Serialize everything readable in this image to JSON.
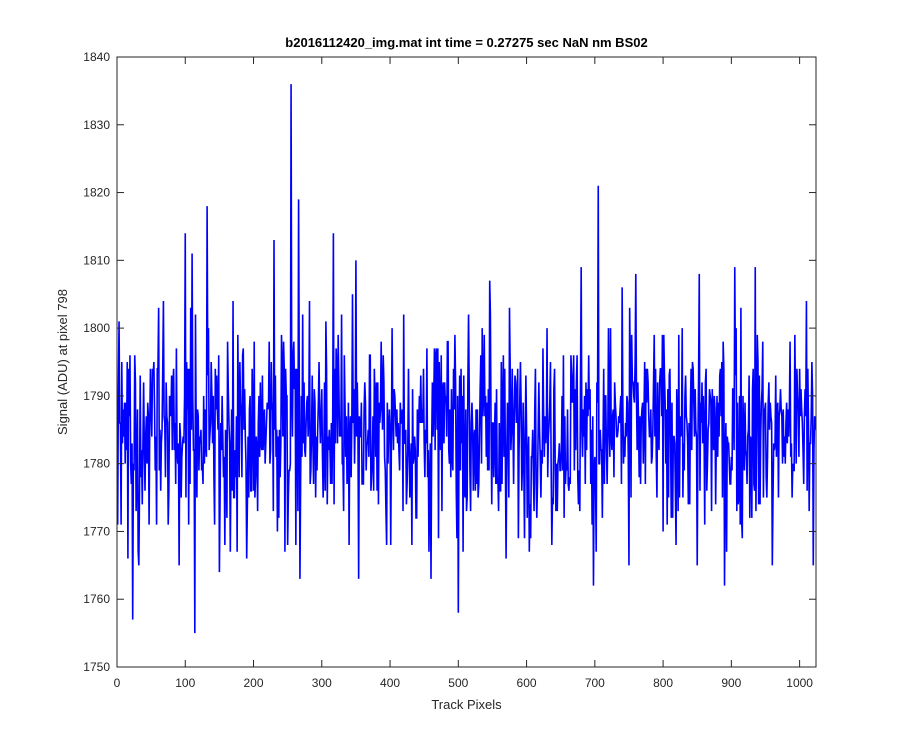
{
  "chart_data": {
    "type": "line",
    "title": "b2016112420_img.mat int time = 0.27275 sec  NaN nm BS02",
    "xlabel": "Track Pixels",
    "ylabel": "Signal (ADU) at pixel 798",
    "xlim": [
      0,
      1024
    ],
    "ylim": [
      1750,
      1840
    ],
    "xticks": [
      0,
      100,
      200,
      300,
      400,
      500,
      600,
      700,
      800,
      900,
      1000
    ],
    "yticks": [
      1750,
      1760,
      1770,
      1780,
      1790,
      1800,
      1810,
      1820,
      1830,
      1840
    ],
    "grid": false,
    "box": true,
    "series": [
      {
        "color": "#0000ff",
        "peaks": [
          {
            "x": 1,
            "y": 1771
          },
          {
            "x": 3,
            "y": 1801
          },
          {
            "x": 16,
            "y": 1766
          },
          {
            "x": 23,
            "y": 1757
          },
          {
            "x": 32,
            "y": 1765
          },
          {
            "x": 68,
            "y": 1804
          },
          {
            "x": 91,
            "y": 1765
          },
          {
            "x": 100,
            "y": 1814
          },
          {
            "x": 110,
            "y": 1811
          },
          {
            "x": 114,
            "y": 1755
          },
          {
            "x": 132,
            "y": 1818
          },
          {
            "x": 150,
            "y": 1764
          },
          {
            "x": 170,
            "y": 1804
          },
          {
            "x": 190,
            "y": 1766
          },
          {
            "x": 230,
            "y": 1813
          },
          {
            "x": 250,
            "y": 1768
          },
          {
            "x": 255,
            "y": 1836
          },
          {
            "x": 262,
            "y": 1768
          },
          {
            "x": 266,
            "y": 1819
          },
          {
            "x": 268,
            "y": 1763
          },
          {
            "x": 282,
            "y": 1804
          },
          {
            "x": 317,
            "y": 1814
          },
          {
            "x": 340,
            "y": 1768
          },
          {
            "x": 345,
            "y": 1805
          },
          {
            "x": 350,
            "y": 1810
          },
          {
            "x": 354,
            "y": 1763
          },
          {
            "x": 420,
            "y": 1802
          },
          {
            "x": 460,
            "y": 1763
          },
          {
            "x": 495,
            "y": 1799
          },
          {
            "x": 500,
            "y": 1758
          },
          {
            "x": 546,
            "y": 1807
          },
          {
            "x": 570,
            "y": 1766
          },
          {
            "x": 630,
            "y": 1800
          },
          {
            "x": 680,
            "y": 1809
          },
          {
            "x": 698,
            "y": 1762
          },
          {
            "x": 705,
            "y": 1821
          },
          {
            "x": 720,
            "y": 1800
          },
          {
            "x": 740,
            "y": 1806
          },
          {
            "x": 750,
            "y": 1765
          },
          {
            "x": 760,
            "y": 1808
          },
          {
            "x": 850,
            "y": 1765
          },
          {
            "x": 853,
            "y": 1808
          },
          {
            "x": 890,
            "y": 1762
          },
          {
            "x": 905,
            "y": 1809
          },
          {
            "x": 935,
            "y": 1809
          },
          {
            "x": 960,
            "y": 1765
          },
          {
            "x": 1010,
            "y": 1804
          },
          {
            "x": 1020,
            "y": 1765
          }
        ],
        "mean": 1785,
        "std": 7.5,
        "n_points": 1024
      }
    ]
  }
}
